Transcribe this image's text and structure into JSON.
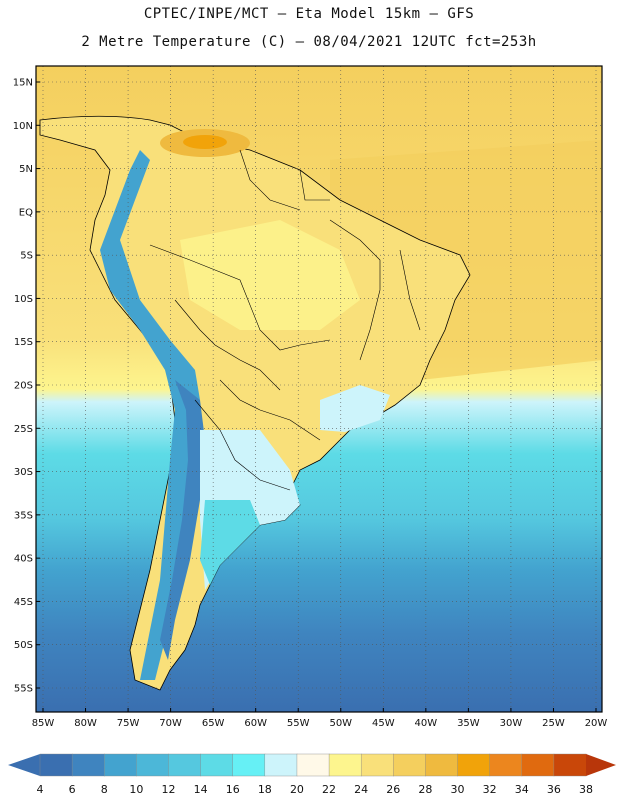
{
  "header": {
    "line1": "CPTEC/INPE/MCT –  Eta Model 15km – GFS",
    "line2": "2 Metre Temperature (C) – 08/04/2021 12UTC fct=253h"
  },
  "map": {
    "lat_ticks": [
      "15N",
      "10N",
      "5N",
      "EQ",
      "5S",
      "10S",
      "15S",
      "20S",
      "25S",
      "30S",
      "35S",
      "40S",
      "45S",
      "50S",
      "55S"
    ],
    "lon_ticks": [
      "85W",
      "80W",
      "75W",
      "70W",
      "65W",
      "60W",
      "55W",
      "50W",
      "45W",
      "40W",
      "35W",
      "30W",
      "25W",
      "20W"
    ],
    "lat_range": [
      15,
      -55
    ],
    "lon_range": [
      -85,
      -20
    ]
  },
  "colorbar": {
    "labels": [
      "4",
      "6",
      "8",
      "10",
      "12",
      "14",
      "16",
      "18",
      "20",
      "22",
      "24",
      "26",
      "28",
      "30",
      "32",
      "34",
      "36",
      "38"
    ],
    "colors": [
      "#3a6fb0",
      "#3f84bf",
      "#43a3cf",
      "#4cb7d8",
      "#55c8df",
      "#5ddbe6",
      "#66f0f5",
      "#cdf4fb",
      "#fff9e8",
      "#fdf58e",
      "#f9e07a",
      "#f4cf5e",
      "#efba3f",
      "#f1a30a",
      "#ec861e",
      "#e06a0f",
      "#c94709"
    ],
    "left_arrow_color": "#3a6fb0",
    "right_arrow_color": "#b8360a"
  }
}
